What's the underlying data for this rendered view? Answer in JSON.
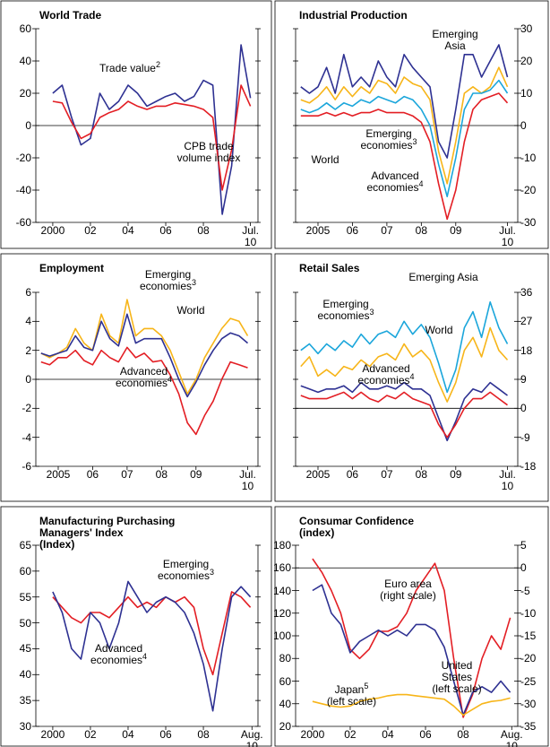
{
  "chart_data": [
    {
      "type": "line",
      "title": "World Trade",
      "x": [
        2000,
        2000.5,
        2001,
        2001.5,
        2002,
        2002.5,
        2003,
        2003.5,
        2004,
        2004.5,
        2005,
        2005.5,
        2006,
        2006.5,
        2007,
        2007.5,
        2008,
        2008.5,
        2009,
        2009.5,
        2010,
        2010.5
      ],
      "xlim": [
        1999.1,
        2010.9
      ],
      "xticks": [
        2000,
        {
          "value": 2002,
          "label": "02"
        },
        {
          "value": 2004,
          "label": "04"
        },
        {
          "value": 2006,
          "label": "06"
        },
        {
          "value": 2008,
          "label": "08"
        },
        {
          "value": 2010.5,
          "label": "Jul. 10"
        }
      ],
      "ylim": [
        -60,
        60
      ],
      "yticks": [
        -60,
        -40,
        -20,
        0,
        20,
        40,
        60
      ],
      "ytick_side": "left",
      "series": [
        {
          "name": "Trade value",
          "note": "2",
          "color": "#2e3192",
          "values": [
            20,
            25,
            5,
            -12,
            -8,
            20,
            10,
            15,
            25,
            20,
            12,
            15,
            18,
            20,
            15,
            18,
            28,
            25,
            -55,
            -25,
            50,
            17
          ]
        },
        {
          "name": "CPB trade volume index",
          "color": "#e31e24",
          "values": [
            15,
            14,
            2,
            -8,
            -5,
            5,
            8,
            10,
            15,
            12,
            10,
            12,
            12,
            14,
            13,
            12,
            10,
            5,
            -40,
            -15,
            25,
            12
          ]
        }
      ]
    },
    {
      "type": "line",
      "title": "Industrial Production",
      "x": [
        2004.5,
        2004.75,
        2005,
        2005.25,
        2005.5,
        2005.75,
        2006,
        2006.25,
        2006.5,
        2006.75,
        2007,
        2007.25,
        2007.5,
        2007.75,
        2008,
        2008.25,
        2008.5,
        2008.75,
        2009,
        2009.25,
        2009.5,
        2009.75,
        2010,
        2010.25,
        2010.5
      ],
      "xlim": [
        2004.35,
        2010.8
      ],
      "xticks": [
        2005,
        {
          "value": 2006,
          "label": "06"
        },
        {
          "value": 2007,
          "label": "07"
        },
        {
          "value": 2008,
          "label": "08"
        },
        {
          "value": 2009,
          "label": "09"
        },
        {
          "value": 2010.5,
          "label": "Jul. 10"
        }
      ],
      "ylim": [
        -30,
        30
      ],
      "yticks": [
        -30,
        -20,
        -10,
        0,
        10,
        20,
        30
      ],
      "ytick_side": "right",
      "series": [
        {
          "name": "Emerging Asia",
          "color": "#2e3192",
          "values": [
            12,
            10,
            12,
            18,
            10,
            22,
            12,
            15,
            12,
            20,
            15,
            12,
            22,
            18,
            15,
            12,
            -5,
            -10,
            5,
            22,
            22,
            15,
            20,
            25,
            15
          ]
        },
        {
          "name": "Emerging economies",
          "note": "3",
          "color": "#f7b519",
          "values": [
            8,
            7,
            9,
            12,
            8,
            12,
            9,
            12,
            10,
            14,
            13,
            10,
            15,
            13,
            12,
            8,
            -8,
            -18,
            -5,
            10,
            12,
            10,
            12,
            18,
            12
          ]
        },
        {
          "name": "World",
          "color": "#1ba6db",
          "values": [
            5,
            4,
            5,
            7,
            5,
            7,
            6,
            8,
            7,
            9,
            8,
            7,
            9,
            8,
            5,
            0,
            -12,
            -22,
            -10,
            5,
            10,
            10,
            11,
            14,
            10
          ]
        },
        {
          "name": "Advanced economies",
          "note": "4",
          "color": "#e31e24",
          "values": [
            3,
            3,
            3,
            4,
            3,
            4,
            3,
            4,
            4,
            5,
            4,
            4,
            4,
            3,
            1,
            -5,
            -18,
            -29,
            -20,
            -5,
            5,
            8,
            9,
            10,
            7
          ]
        }
      ]
    },
    {
      "type": "line",
      "title": "Employment",
      "x": [
        2004.5,
        2004.75,
        2005,
        2005.25,
        2005.5,
        2005.75,
        2006,
        2006.25,
        2006.5,
        2006.75,
        2007,
        2007.25,
        2007.5,
        2007.75,
        2008,
        2008.25,
        2008.5,
        2008.75,
        2009,
        2009.25,
        2009.5,
        2009.75,
        2010,
        2010.25,
        2010.5
      ],
      "xlim": [
        2004.35,
        2010.8
      ],
      "xticks": [
        2005,
        {
          "value": 2006,
          "label": "06"
        },
        {
          "value": 2007,
          "label": "07"
        },
        {
          "value": 2008,
          "label": "08"
        },
        {
          "value": 2009,
          "label": "09"
        },
        {
          "value": 2010.5,
          "label": "Jul. 10"
        }
      ],
      "ylim": [
        -6,
        6
      ],
      "yticks": [
        -6,
        -4,
        -2,
        0,
        2,
        4,
        6
      ],
      "ytick_side": "left",
      "series": [
        {
          "name": "Emerging economies",
          "note": "3",
          "color": "#f7b519",
          "values": [
            1.8,
            1.5,
            1.8,
            2.2,
            3.5,
            2.5,
            2.0,
            4.5,
            3.0,
            2.5,
            5.5,
            3.0,
            3.5,
            3.5,
            3.0,
            2.0,
            0.5,
            -1.0,
            0,
            1.5,
            2.5,
            3.5,
            4.2,
            4.0,
            3.0
          ]
        },
        {
          "name": "World",
          "color": "#2e3192",
          "values": [
            1.8,
            1.6,
            1.8,
            2.0,
            3.0,
            2.2,
            2.0,
            4.0,
            2.8,
            2.3,
            4.5,
            2.5,
            2.8,
            2.8,
            2.8,
            1.5,
            0,
            -1.2,
            -0.2,
            1.0,
            2.0,
            2.8,
            3.2,
            3.0,
            2.5
          ]
        },
        {
          "name": "Advanced economies",
          "note": "4",
          "color": "#e31e24",
          "values": [
            1.2,
            1.0,
            1.5,
            1.5,
            2.0,
            1.3,
            1.0,
            2.0,
            1.5,
            1.2,
            2.2,
            1.5,
            1.8,
            1.2,
            1.3,
            0.3,
            -1.0,
            -3.0,
            -3.8,
            -2.5,
            -1.5,
            0,
            1.2,
            1.0,
            0.8
          ]
        }
      ]
    },
    {
      "type": "line",
      "title": "Retail Sales",
      "x": [
        2004.5,
        2004.75,
        2005,
        2005.25,
        2005.5,
        2005.75,
        2006,
        2006.25,
        2006.5,
        2006.75,
        2007,
        2007.25,
        2007.5,
        2007.75,
        2008,
        2008.25,
        2008.5,
        2008.75,
        2009,
        2009.25,
        2009.5,
        2009.75,
        2010,
        2010.25,
        2010.5
      ],
      "xlim": [
        2004.35,
        2010.8
      ],
      "xticks": [
        2005,
        {
          "value": 2006,
          "label": "06"
        },
        {
          "value": 2007,
          "label": "07"
        },
        {
          "value": 2008,
          "label": "08"
        },
        {
          "value": 2009,
          "label": "09"
        },
        {
          "value": 2010.5,
          "label": "Jul. 10"
        }
      ],
      "ylim": [
        -18,
        36
      ],
      "yticks": [
        -18,
        -9,
        0,
        9,
        18,
        27,
        36
      ],
      "ytick_side": "right",
      "series": [
        {
          "name": "Emerging Asia",
          "color": "#1ba6db",
          "values": [
            18,
            20,
            17,
            20,
            18,
            21,
            19,
            23,
            20,
            23,
            24,
            22,
            27,
            23,
            26,
            22,
            14,
            5,
            12,
            25,
            30,
            22,
            33,
            25,
            20
          ]
        },
        {
          "name": "Emerging economies",
          "note": "3",
          "color": "#f7b519",
          "values": [
            13,
            16,
            10,
            12,
            10,
            13,
            12,
            15,
            13,
            16,
            17,
            15,
            20,
            16,
            18,
            15,
            8,
            2,
            8,
            18,
            22,
            16,
            25,
            18,
            15
          ]
        },
        {
          "name": "World",
          "color": "#2e3192",
          "values": [
            7,
            6,
            5,
            6,
            6,
            7,
            5,
            8,
            6,
            6,
            7,
            6,
            8,
            6,
            6,
            4,
            -3,
            -10,
            -4,
            3,
            6,
            5,
            8,
            6,
            4
          ]
        },
        {
          "name": "Advanced economies",
          "note": "4",
          "color": "#e31e24",
          "values": [
            4,
            3,
            3,
            3,
            4,
            5,
            3,
            5,
            3,
            2,
            4,
            3,
            5,
            3,
            2,
            1,
            -5,
            -9,
            -5,
            0,
            3,
            3,
            5,
            3,
            1
          ]
        }
      ]
    },
    {
      "type": "line",
      "title": "Manufacturing Purchasing Managers' Index",
      "subtitle": "(Index)",
      "x": [
        2000,
        2000.5,
        2001,
        2001.5,
        2002,
        2002.5,
        2003,
        2003.5,
        2004,
        2004.5,
        2005,
        2005.5,
        2006,
        2006.5,
        2007,
        2007.5,
        2008,
        2008.5,
        2009,
        2009.5,
        2010,
        2010.5
      ],
      "xlim": [
        1999.1,
        2010.9
      ],
      "xticks": [
        2000,
        {
          "value": 2002,
          "label": "02"
        },
        {
          "value": 2004,
          "label": "04"
        },
        {
          "value": 2006,
          "label": "06"
        },
        {
          "value": 2008,
          "label": "08"
        },
        {
          "value": 2010.58,
          "label": "Aug. 10"
        }
      ],
      "ylim": [
        30,
        65
      ],
      "yticks": [
        30,
        35,
        40,
        45,
        50,
        55,
        60,
        65
      ],
      "ytick_side": "left",
      "series": [
        {
          "name": "Emerging economies",
          "note": "3",
          "color": "#e31e24",
          "values": [
            55,
            53,
            51,
            50,
            52,
            52,
            51,
            53,
            55,
            53,
            54,
            53,
            55,
            54,
            55,
            53,
            45,
            40,
            48,
            56,
            55,
            53
          ]
        },
        {
          "name": "Advanced economies",
          "note": "4",
          "color": "#2e3192",
          "values": [
            56,
            52,
            45,
            43,
            52,
            50,
            45,
            50,
            58,
            55,
            52,
            54,
            55,
            54,
            52,
            48,
            42,
            33,
            45,
            55,
            57,
            55
          ]
        }
      ]
    },
    {
      "type": "line",
      "title": "Consumar Confidence",
      "subtitle": "(index)",
      "x": [
        2000,
        2000.5,
        2001,
        2001.5,
        2002,
        2002.5,
        2003,
        2003.5,
        2004,
        2004.5,
        2005,
        2005.5,
        2006,
        2006.5,
        2007,
        2007.5,
        2008,
        2008.5,
        2009,
        2009.5,
        2010,
        2010.5
      ],
      "xlim": [
        1999.1,
        2010.9
      ],
      "xticks": [
        2000,
        {
          "value": 2002,
          "label": "02"
        },
        {
          "value": 2004,
          "label": "04"
        },
        {
          "value": 2006,
          "label": "06"
        },
        {
          "value": 2008,
          "label": "08"
        },
        {
          "value": 2010.58,
          "label": "Aug. 10"
        }
      ],
      "ylim": [
        20,
        180
      ],
      "yticks": [
        20,
        40,
        60,
        80,
        100,
        120,
        140,
        160,
        180
      ],
      "ytick_side": "left",
      "y2lim": [
        -35,
        5
      ],
      "y2ticks": [
        -35,
        -30,
        -25,
        -20,
        -15,
        -10,
        -5,
        0,
        5
      ],
      "series": [
        {
          "name": "Euro area",
          "suffix": "(right scale)",
          "axis": "y2",
          "color": "#e31e24",
          "values": [
            2,
            -1,
            -5,
            -10,
            -18,
            -20,
            -18,
            -14,
            -14,
            -13,
            -10,
            -5,
            -2,
            1,
            -5,
            -20,
            -33,
            -28,
            -20,
            -15,
            -18,
            -11
          ]
        },
        {
          "name": "United States",
          "suffix": "(left scale)",
          "color": "#2e3192",
          "values": [
            140,
            145,
            120,
            110,
            85,
            95,
            100,
            105,
            100,
            105,
            100,
            110,
            110,
            105,
            90,
            60,
            30,
            50,
            55,
            50,
            60,
            50
          ]
        },
        {
          "name": "Japan",
          "note": "5",
          "suffix": "(left scale)",
          "color": "#f7b519",
          "values": [
            42,
            40,
            38,
            37,
            38,
            42,
            44,
            45,
            47,
            48,
            48,
            47,
            46,
            45,
            44,
            38,
            30,
            35,
            40,
            42,
            43,
            45
          ]
        }
      ]
    }
  ]
}
